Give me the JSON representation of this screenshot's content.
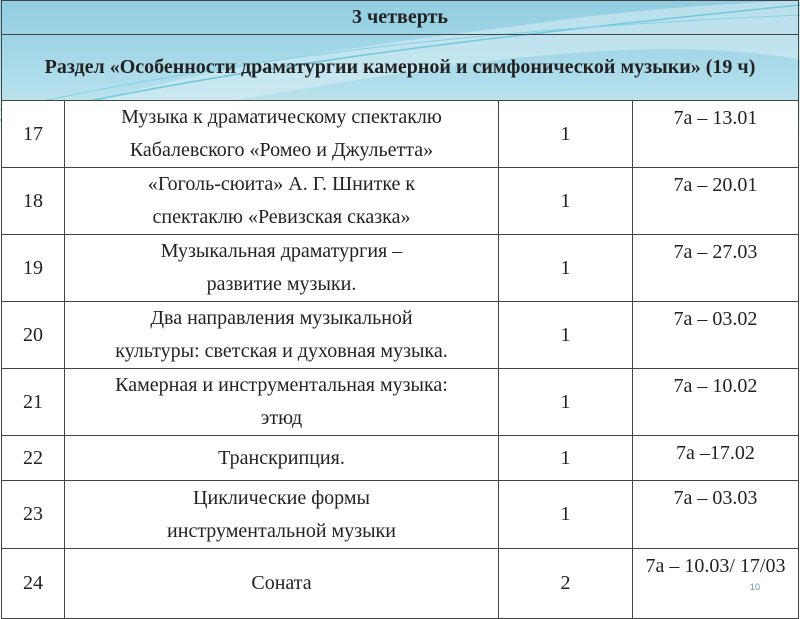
{
  "quarter": "3 четверть",
  "section": "Раздел «Особенности драматургии камерной и симфонической музыки» (19 ч)",
  "rows": [
    {
      "num": "17",
      "topic_1": "Музыка  к драматическому спектаклю",
      "topic_2": "Кабалевского «Ромео и Джульетта»",
      "hours": "1",
      "date": "7а – 13.01"
    },
    {
      "num": "18",
      "topic_1": "«Гоголь-сюита» А. Г. Шнитке к",
      "topic_2": "спектаклю «Ревизская сказка»",
      "hours": "1",
      "date": "7а – 20.01"
    },
    {
      "num": "19",
      "topic_1": "Музыкальная драматургия –",
      "topic_2": "развитие музыки.",
      "hours": "1",
      "date": "7а – 27.03"
    },
    {
      "num": "20",
      "topic_1": "Два направления музыкальной",
      "topic_2": "культуры: светская и духовная музыка.",
      "hours": "1",
      "date": "7а – 03.02"
    },
    {
      "num": "21",
      "topic_1": "Камерная и инструментальная музыка:",
      "topic_2": "этюд",
      "hours": "1",
      "date": "7а – 10.02"
    },
    {
      "num": "22",
      "topic_1": "Транскрипция.",
      "topic_2": "",
      "hours": "1",
      "date": "7а –17.02"
    },
    {
      "num": "23",
      "topic_1": "Циклические формы",
      "topic_2": "инструментальной музыки",
      "hours": "1",
      "date": "7а – 03.03"
    },
    {
      "num": "24",
      "topic_1": "Соната",
      "topic_2": "",
      "hours": "2",
      "date": "7а – 10.03/ 17/03"
    }
  ],
  "page_number": "10",
  "colors": {
    "header_bg": "#b4dde9",
    "wave": "#5cc6d8"
  }
}
